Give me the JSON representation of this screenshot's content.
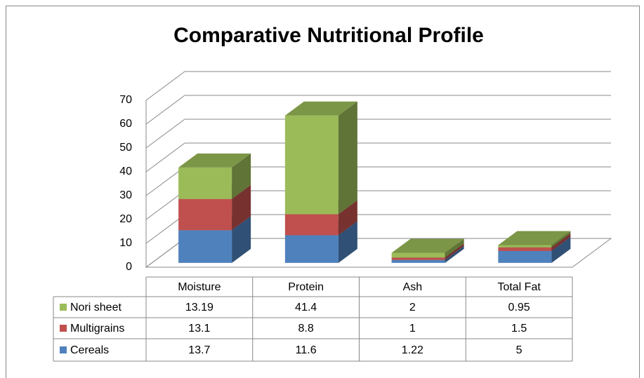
{
  "chart_data": {
    "type": "bar3d_stacked",
    "title": "Comparative Nutritional Profile",
    "categories": [
      "Moisture",
      "Protein",
      "Ash",
      "Total Fat"
    ],
    "series": [
      {
        "name": "Cereals",
        "color": "#4f81bd",
        "values": [
          13.7,
          11.6,
          1.22,
          5
        ]
      },
      {
        "name": "Multigrains",
        "color": "#c0504d",
        "values": [
          13.1,
          8.8,
          1,
          1.5
        ]
      },
      {
        "name": "Nori sheet",
        "color": "#9bbb59",
        "values": [
          13.19,
          41.4,
          2,
          0.95
        ]
      }
    ],
    "ylim": [
      0,
      70
    ],
    "yticks": [
      0,
      10,
      20,
      30,
      40,
      50,
      60,
      70
    ],
    "grid": true,
    "data_table": true
  }
}
